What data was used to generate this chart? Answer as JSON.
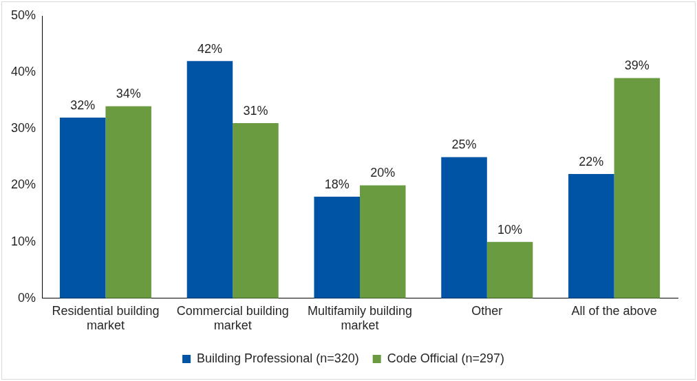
{
  "chart_data": {
    "type": "bar",
    "categories": [
      "Residential building market",
      "Commercial building market",
      "Multifamily building market",
      "Other",
      "All of the above"
    ],
    "series": [
      {
        "name": "Building Professional (n=320)",
        "color": "#0054a6",
        "values": [
          32,
          42,
          18,
          25,
          22
        ],
        "value_labels": [
          "32%",
          "42%",
          "18%",
          "25%",
          "22%"
        ]
      },
      {
        "name": "Code Official (n=297)",
        "color": "#6a9b40",
        "values": [
          34,
          31,
          20,
          10,
          39
        ],
        "value_labels": [
          "34%",
          "31%",
          "20%",
          "10%",
          "39%"
        ]
      }
    ],
    "ylim": [
      0,
      50
    ],
    "yticks": [
      {
        "value": 0,
        "label": "0%"
      },
      {
        "value": 10,
        "label": "10%"
      },
      {
        "value": 20,
        "label": "20%"
      },
      {
        "value": 30,
        "label": "30%"
      },
      {
        "value": 40,
        "label": "40%"
      },
      {
        "value": 50,
        "label": "50%"
      }
    ],
    "grid": false,
    "legend": "bottom"
  }
}
